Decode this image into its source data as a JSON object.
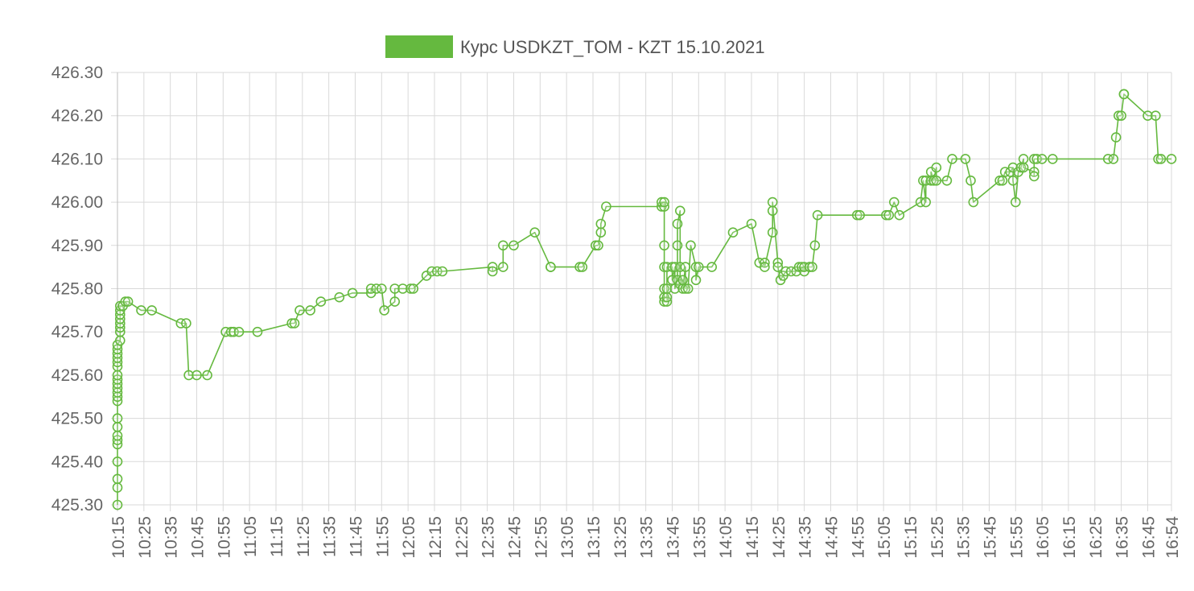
{
  "chart_data": {
    "type": "line",
    "title": "",
    "xlabel": "",
    "ylabel": "",
    "legend_position": "top",
    "grid": true,
    "line_color": "#65b93f",
    "ylim": [
      425.3,
      426.3
    ],
    "xlim": [
      "10:15",
      "16:54"
    ],
    "y_ticks": [
      "426.30",
      "426.20",
      "426.10",
      "426.00",
      "425.90",
      "425.80",
      "425.70",
      "425.60",
      "425.50",
      "425.40",
      "425.30"
    ],
    "x_ticks": [
      "10:15",
      "10:25",
      "10:35",
      "10:45",
      "10:55",
      "11:05",
      "11:15",
      "11:25",
      "11:35",
      "11:45",
      "11:55",
      "12:05",
      "12:15",
      "12:25",
      "12:35",
      "12:45",
      "12:55",
      "13:05",
      "13:15",
      "13:25",
      "13:35",
      "13:45",
      "13:55",
      "14:05",
      "14:15",
      "14:25",
      "14:35",
      "14:45",
      "14:55",
      "15:05",
      "15:15",
      "15:25",
      "15:35",
      "15:45",
      "15:55",
      "16:05",
      "16:15",
      "16:25",
      "16:35",
      "16:45",
      "16:54"
    ],
    "series": [
      {
        "name": "Курс USDKZT_TOM - KZT 15.10.2021",
        "points": [
          [
            "10:15",
            425.3
          ],
          [
            "10:15",
            425.34
          ],
          [
            "10:15",
            425.36
          ],
          [
            "10:15",
            425.4
          ],
          [
            "10:15",
            425.44
          ],
          [
            "10:15",
            425.45
          ],
          [
            "10:15",
            425.46
          ],
          [
            "10:15",
            425.48
          ],
          [
            "10:15",
            425.5
          ],
          [
            "10:15",
            425.54
          ],
          [
            "10:15",
            425.55
          ],
          [
            "10:15",
            425.56
          ],
          [
            "10:15",
            425.57
          ],
          [
            "10:15",
            425.58
          ],
          [
            "10:15",
            425.59
          ],
          [
            "10:15",
            425.6
          ],
          [
            "10:15",
            425.62
          ],
          [
            "10:15",
            425.63
          ],
          [
            "10:15",
            425.64
          ],
          [
            "10:15",
            425.65
          ],
          [
            "10:15",
            425.66
          ],
          [
            "10:15",
            425.67
          ],
          [
            "10:16",
            425.68
          ],
          [
            "10:16",
            425.7
          ],
          [
            "10:16",
            425.71
          ],
          [
            "10:16",
            425.72
          ],
          [
            "10:16",
            425.73
          ],
          [
            "10:16",
            425.74
          ],
          [
            "10:16",
            425.75
          ],
          [
            "10:16",
            425.76
          ],
          [
            "10:17",
            425.76
          ],
          [
            "10:18",
            425.77
          ],
          [
            "10:19",
            425.77
          ],
          [
            "10:24",
            425.75
          ],
          [
            "10:28",
            425.75
          ],
          [
            "10:39",
            425.72
          ],
          [
            "10:41",
            425.72
          ],
          [
            "10:42",
            425.6
          ],
          [
            "10:45",
            425.6
          ],
          [
            "10:49",
            425.6
          ],
          [
            "10:56",
            425.7
          ],
          [
            "10:58",
            425.7
          ],
          [
            "10:59",
            425.7
          ],
          [
            "11:01",
            425.7
          ],
          [
            "11:08",
            425.7
          ],
          [
            "11:21",
            425.72
          ],
          [
            "11:22",
            425.72
          ],
          [
            "11:24",
            425.75
          ],
          [
            "11:28",
            425.75
          ],
          [
            "11:32",
            425.77
          ],
          [
            "11:39",
            425.78
          ],
          [
            "11:44",
            425.79
          ],
          [
            "11:51",
            425.79
          ],
          [
            "11:51",
            425.8
          ],
          [
            "11:53",
            425.8
          ],
          [
            "11:55",
            425.8
          ],
          [
            "11:56",
            425.75
          ],
          [
            "12:00",
            425.77
          ],
          [
            "12:00",
            425.8
          ],
          [
            "12:03",
            425.8
          ],
          [
            "12:06",
            425.8
          ],
          [
            "12:07",
            425.8
          ],
          [
            "12:12",
            425.83
          ],
          [
            "12:14",
            425.84
          ],
          [
            "12:16",
            425.84
          ],
          [
            "12:18",
            425.84
          ],
          [
            "12:37",
            425.85
          ],
          [
            "12:37",
            425.84
          ],
          [
            "12:41",
            425.85
          ],
          [
            "12:41",
            425.9
          ],
          [
            "12:45",
            425.9
          ],
          [
            "12:53",
            425.93
          ],
          [
            "12:59",
            425.85
          ],
          [
            "12:59",
            425.85
          ],
          [
            "13:10",
            425.85
          ],
          [
            "13:11",
            425.85
          ],
          [
            "13:16",
            425.9
          ],
          [
            "13:17",
            425.9
          ],
          [
            "13:18",
            425.93
          ],
          [
            "13:18",
            425.95
          ],
          [
            "13:20",
            425.99
          ],
          [
            "13:41",
            425.99
          ],
          [
            "13:41",
            426.0
          ],
          [
            "13:42",
            425.99
          ],
          [
            "13:42",
            426.0
          ],
          [
            "13:42",
            425.9
          ],
          [
            "13:42",
            425.85
          ],
          [
            "13:42",
            425.8
          ],
          [
            "13:42",
            425.78
          ],
          [
            "13:42",
            425.77
          ],
          [
            "13:43",
            425.77
          ],
          [
            "13:43",
            425.78
          ],
          [
            "13:43",
            425.8
          ],
          [
            "13:43",
            425.85
          ],
          [
            "13:45",
            425.85
          ],
          [
            "13:45",
            425.82
          ],
          [
            "13:46",
            425.85
          ],
          [
            "13:46",
            425.8
          ],
          [
            "13:47",
            425.82
          ],
          [
            "13:47",
            425.9
          ],
          [
            "13:47",
            425.95
          ],
          [
            "13:48",
            425.98
          ],
          [
            "13:48",
            425.85
          ],
          [
            "13:48",
            425.81
          ],
          [
            "13:49",
            425.82
          ],
          [
            "13:49",
            425.8
          ],
          [
            "13:50",
            425.85
          ],
          [
            "13:50",
            425.8
          ],
          [
            "13:51",
            425.8
          ],
          [
            "13:52",
            425.9
          ],
          [
            "13:54",
            425.85
          ],
          [
            "13:54",
            425.82
          ],
          [
            "13:55",
            425.85
          ],
          [
            "14:00",
            425.85
          ],
          [
            "14:08",
            425.93
          ],
          [
            "14:15",
            425.95
          ],
          [
            "14:18",
            425.86
          ],
          [
            "14:20",
            425.86
          ],
          [
            "14:20",
            425.85
          ],
          [
            "14:23",
            425.93
          ],
          [
            "14:23",
            425.98
          ],
          [
            "14:23",
            426.0
          ],
          [
            "14:25",
            425.86
          ],
          [
            "14:25",
            425.85
          ],
          [
            "14:26",
            425.82
          ],
          [
            "14:27",
            425.83
          ],
          [
            "14:28",
            425.84
          ],
          [
            "14:30",
            425.84
          ],
          [
            "14:32",
            425.84
          ],
          [
            "14:33",
            425.85
          ],
          [
            "14:34",
            425.85
          ],
          [
            "14:35",
            425.84
          ],
          [
            "14:35",
            425.85
          ],
          [
            "14:37",
            425.85
          ],
          [
            "14:37",
            425.85
          ],
          [
            "14:38",
            425.85
          ],
          [
            "14:39",
            425.9
          ],
          [
            "14:40",
            425.97
          ],
          [
            "14:55",
            425.97
          ],
          [
            "14:56",
            425.97
          ],
          [
            "15:06",
            425.97
          ],
          [
            "15:07",
            425.97
          ],
          [
            "15:09",
            426.0
          ],
          [
            "15:11",
            425.97
          ],
          [
            "15:19",
            426.0
          ],
          [
            "15:20",
            426.05
          ],
          [
            "15:21",
            426.0
          ],
          [
            "15:21",
            426.05
          ],
          [
            "15:23",
            426.05
          ],
          [
            "15:23",
            426.07
          ],
          [
            "15:24",
            426.05
          ],
          [
            "15:25",
            426.08
          ],
          [
            "15:25",
            426.05
          ],
          [
            "15:29",
            426.05
          ],
          [
            "15:31",
            426.1
          ],
          [
            "15:36",
            426.1
          ],
          [
            "15:38",
            426.05
          ],
          [
            "15:39",
            426.0
          ],
          [
            "15:49",
            426.05
          ],
          [
            "15:50",
            426.05
          ],
          [
            "15:51",
            426.07
          ],
          [
            "15:53",
            426.07
          ],
          [
            "15:54",
            426.08
          ],
          [
            "15:54",
            426.05
          ],
          [
            "15:55",
            426.0
          ],
          [
            "15:56",
            426.07
          ],
          [
            "15:57",
            426.08
          ],
          [
            "15:58",
            426.1
          ],
          [
            "15:58",
            426.08
          ],
          [
            "16:02",
            426.07
          ],
          [
            "16:02",
            426.06
          ],
          [
            "16:02",
            426.1
          ],
          [
            "16:03",
            426.1
          ],
          [
            "16:05",
            426.1
          ],
          [
            "16:09",
            426.1
          ],
          [
            "16:30",
            426.1
          ],
          [
            "16:32",
            426.1
          ],
          [
            "16:33",
            426.15
          ],
          [
            "16:34",
            426.2
          ],
          [
            "16:35",
            426.2
          ],
          [
            "16:36",
            426.25
          ],
          [
            "16:36",
            426.25
          ],
          [
            "16:45",
            426.2
          ],
          [
            "16:48",
            426.2
          ],
          [
            "16:49",
            426.1
          ],
          [
            "16:50",
            426.1
          ],
          [
            "16:54",
            426.1
          ]
        ]
      }
    ]
  }
}
